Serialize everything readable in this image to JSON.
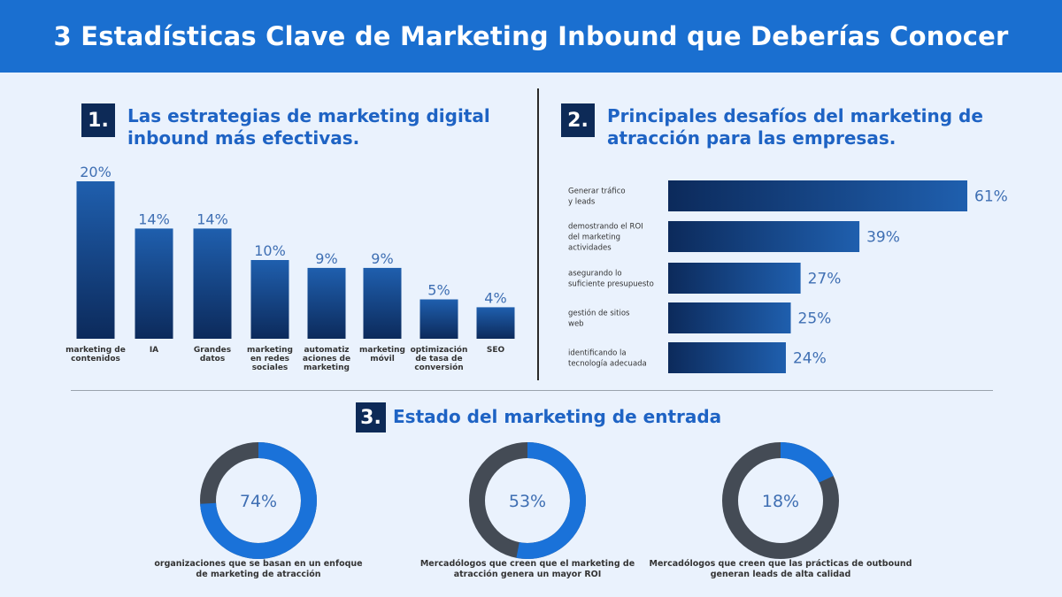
{
  "header": {
    "title": "3 Estadísticas Clave de Marketing Inbound que Deberías Conocer"
  },
  "sections": [
    {
      "number": "1.",
      "title_line1": "Las estrategias de marketing digital",
      "title_line2": "inbound más efectivas."
    },
    {
      "number": "2.",
      "title_line1": "Principales desafíos del marketing de",
      "title_line2": "atracción para las empresas."
    },
    {
      "number": "3.",
      "title_line1": "Estado del marketing de entrada",
      "title_line2": ""
    }
  ],
  "colors": {
    "header": "#1a6fd0",
    "bar_top": "#1f5fae",
    "bar_bottom": "#0c2a5b",
    "donut_value": "#1a72d9",
    "donut_rest": "#444b55",
    "value_text": "#3f6fb3"
  },
  "chart_data": [
    {
      "type": "bar",
      "title": "Las estrategias de marketing digital inbound más efectivas.",
      "categories": [
        [
          "marketing de",
          "contenidos"
        ],
        [
          "IA"
        ],
        [
          "Grandes",
          "datos"
        ],
        [
          "marketing",
          "en redes",
          "sociales"
        ],
        [
          "automatiz",
          "aciones de",
          "marketing"
        ],
        [
          "marketing",
          "móvil"
        ],
        [
          "optimización",
          "de tasa de",
          "conversión"
        ],
        [
          "SEO"
        ]
      ],
      "values": [
        20,
        14,
        14,
        10,
        9,
        9,
        5,
        4
      ],
      "value_labels": [
        "20%",
        "14%",
        "14%",
        "10%",
        "9%",
        "9%",
        "5%",
        "4%"
      ],
      "ylim": [
        0,
        20
      ]
    },
    {
      "type": "bar",
      "orientation": "horizontal",
      "title": "Principales desafíos del marketing de atracción para las empresas.",
      "categories": [
        [
          "Generar tráfico",
          "y leads"
        ],
        [
          "demostrando el ROI",
          "del marketing",
          "actividades"
        ],
        [
          "asegurando lo",
          "suficiente presupuesto"
        ],
        [
          "gestión de sitios",
          "web"
        ],
        [
          "identificando la",
          "tecnología adecuada"
        ]
      ],
      "values": [
        61,
        39,
        27,
        25,
        24
      ],
      "value_labels": [
        "61%",
        "39%",
        "27%",
        "25%",
        "24%"
      ],
      "xlim": [
        0,
        61
      ]
    },
    {
      "type": "pie",
      "title": "Estado del marketing de entrada",
      "series": [
        {
          "value": 74,
          "label": "74%",
          "caption": [
            "organizaciones que se basan en un enfoque",
            "de marketing de atracción"
          ]
        },
        {
          "value": 53,
          "label": "53%",
          "caption": [
            "Mercadólogos que creen que el marketing de",
            "atracción genera un mayor ROI"
          ]
        },
        {
          "value": 18,
          "label": "18%",
          "caption": [
            "Mercadólogos que creen que las prácticas de outbound",
            "generan leads de alta calidad"
          ]
        }
      ]
    }
  ]
}
